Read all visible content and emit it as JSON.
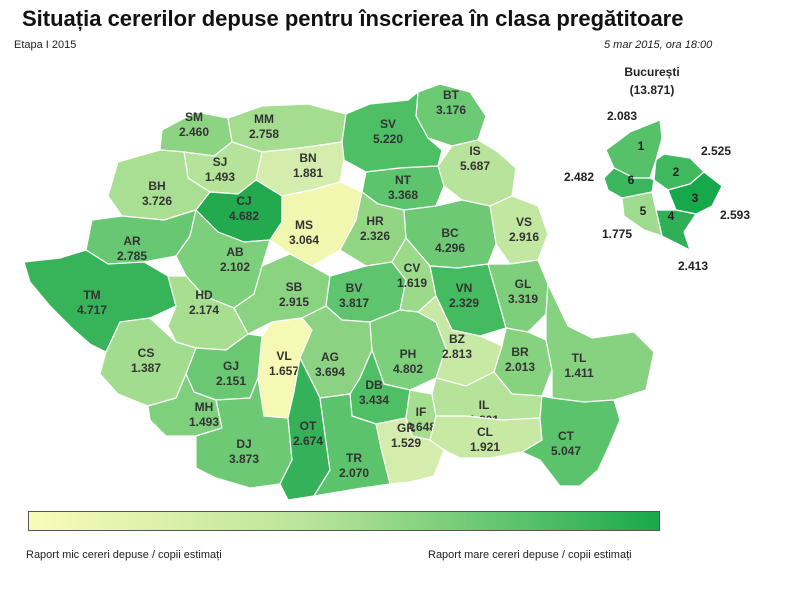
{
  "title": "Situația cererilor depuse pentru înscrierea în clasa pregătitoare",
  "subtitle": "Etapa I 2015",
  "datestamp": "5 mar 2015, ora 18:00",
  "legend": {
    "low_label": "Raport mic cereri depuse / copii estimați",
    "high_label": "Raport mare cereri depuse / copii estimați",
    "low_color": "#fafcb9",
    "high_color": "#19a84b"
  },
  "bucharest": {
    "name": "București",
    "total": "(13.871)",
    "sectors": [
      {
        "num": "1",
        "value": "2.083",
        "color": "#56c169"
      },
      {
        "num": "2",
        "value": "2.525",
        "color": "#3fb85e"
      },
      {
        "num": "3",
        "value": "2.593",
        "color": "#16a84a"
      },
      {
        "num": "4",
        "value": "2.413",
        "color": "#2fb057"
      },
      {
        "num": "5",
        "value": "1.775",
        "color": "#9fdb8e"
      },
      {
        "num": "6",
        "value": "2.482",
        "color": "#3bb65c"
      }
    ]
  },
  "counties": [
    {
      "code": "SM",
      "value": "2.460",
      "color": "#8dd482"
    },
    {
      "code": "MM",
      "value": "2.758",
      "color": "#a4dd8f"
    },
    {
      "code": "BT",
      "value": "3.176",
      "color": "#6cc974"
    },
    {
      "code": "SV",
      "value": "5.220",
      "color": "#4fbf66"
    },
    {
      "code": "SJ",
      "value": "1.493",
      "color": "#b5e399"
    },
    {
      "code": "BN",
      "value": "1.881",
      "color": "#d4ecac"
    },
    {
      "code": "IS",
      "value": "5.687",
      "color": "#b7e49a"
    },
    {
      "code": "BH",
      "value": "3.726",
      "color": "#a9df92"
    },
    {
      "code": "CJ",
      "value": "4.682",
      "color": "#23a94e"
    },
    {
      "code": "NT",
      "value": "3.368",
      "color": "#5cc46c"
    },
    {
      "code": "MS",
      "value": "3.064",
      "color": "#f1f7ae"
    },
    {
      "code": "HR",
      "value": "2.326",
      "color": "#92d684"
    },
    {
      "code": "VS",
      "value": "2.916",
      "color": "#c1e7a0"
    },
    {
      "code": "AR",
      "value": "2.785",
      "color": "#67c772"
    },
    {
      "code": "AB",
      "value": "2.102",
      "color": "#7ccf7b"
    },
    {
      "code": "BC",
      "value": "4.296",
      "color": "#6ec975"
    },
    {
      "code": "TM",
      "value": "4.717",
      "color": "#37b35a"
    },
    {
      "code": "HD",
      "value": "2.174",
      "color": "#a7de90"
    },
    {
      "code": "SB",
      "value": "2.915",
      "color": "#8ad381"
    },
    {
      "code": "BV",
      "value": "3.817",
      "color": "#5ec46d"
    },
    {
      "code": "CV",
      "value": "1.619",
      "color": "#9bda8b"
    },
    {
      "code": "VN",
      "value": "2.329",
      "color": "#44ba61"
    },
    {
      "code": "GL",
      "value": "3.319",
      "color": "#7dcf7c"
    },
    {
      "code": "CS",
      "value": "1.387",
      "color": "#a2dc8e"
    },
    {
      "code": "VL",
      "value": "1.657",
      "color": "#f5f9b3"
    },
    {
      "code": "AG",
      "value": "3.694",
      "color": "#8bd382"
    },
    {
      "code": "PH",
      "value": "4.802",
      "color": "#7ccf7b"
    },
    {
      "code": "BZ",
      "value": "2.813",
      "color": "#c7e9a3"
    },
    {
      "code": "BR",
      "value": "2.013",
      "color": "#86d27f"
    },
    {
      "code": "TL",
      "value": "1.411",
      "color": "#87d280"
    },
    {
      "code": "GJ",
      "value": "2.151",
      "color": "#6ac873"
    },
    {
      "code": "MH",
      "value": "1.493",
      "color": "#7fd07d"
    },
    {
      "code": "DB",
      "value": "3.434",
      "color": "#4ebf65"
    },
    {
      "code": "IF",
      "value": "2.648",
      "color": "#a6de90"
    },
    {
      "code": "IL",
      "value": "1.801",
      "color": "#b5e399"
    },
    {
      "code": "DJ",
      "value": "3.873",
      "color": "#6ec975"
    },
    {
      "code": "OT",
      "value": "2.674",
      "color": "#35b259"
    },
    {
      "code": "TR",
      "value": "2.070",
      "color": "#5ac36c"
    },
    {
      "code": "GR",
      "value": "1.529",
      "color": "#d4ecac"
    },
    {
      "code": "CL",
      "value": "1.921",
      "color": "#c8e9a4"
    },
    {
      "code": "CT",
      "value": "5.047",
      "color": "#5ac36c"
    }
  ]
}
